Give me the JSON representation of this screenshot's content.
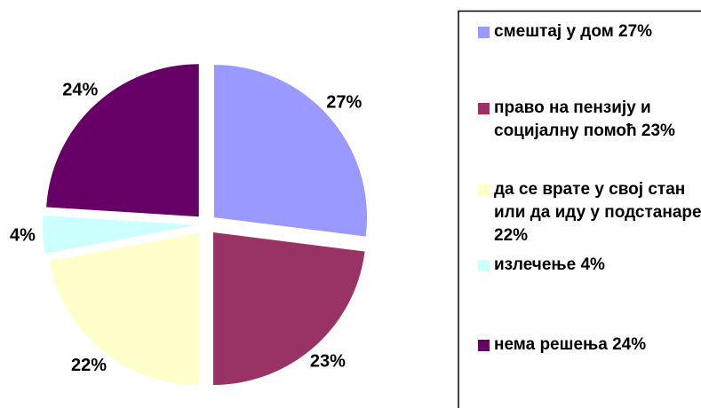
{
  "chart_data": {
    "type": "pie",
    "categories": [
      "смештај у дом 27%",
      "право на пензију и социјалну помоћ 23%",
      "да се врате у свој стан или да иду у подстанаре 22%",
      "излечење 4%",
      "нема решења 24%"
    ],
    "values": [
      27,
      23,
      22,
      4,
      24
    ],
    "value_labels": [
      "27%",
      "23%",
      "22%",
      "4%",
      "24%"
    ],
    "colors": [
      "#9999ff",
      "#993366",
      "#ffffcc",
      "#ccffff",
      "#660066"
    ],
    "legend": "right"
  }
}
